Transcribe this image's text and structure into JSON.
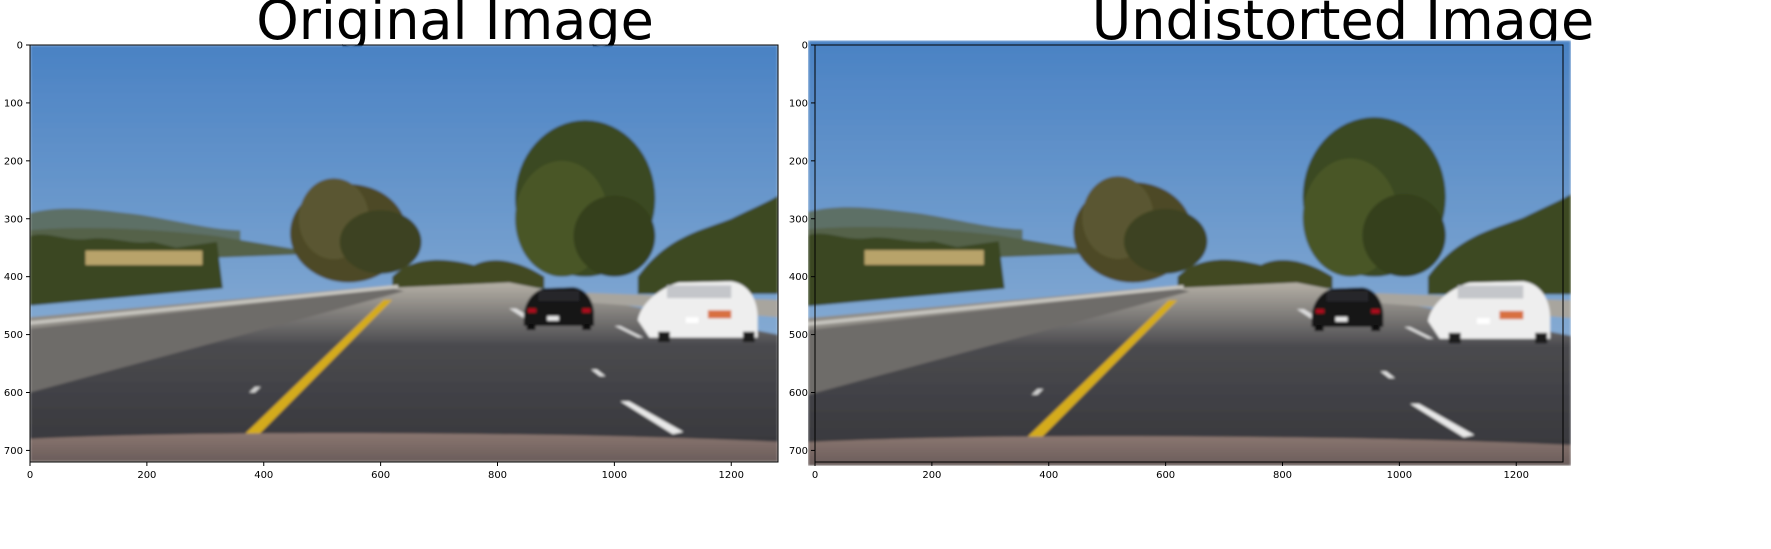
{
  "panels": [
    {
      "title": "Original Image",
      "x_ticks": [
        "0",
        "200",
        "400",
        "600",
        "800",
        "1000",
        "1200"
      ],
      "y_ticks": [
        "0",
        "100",
        "200",
        "300",
        "400",
        "500",
        "600",
        "700"
      ]
    },
    {
      "title": "Undistorted Image",
      "x_ticks": [
        "0",
        "200",
        "400",
        "600",
        "800",
        "1000",
        "1200"
      ],
      "y_ticks": [
        "0",
        "100",
        "200",
        "300",
        "400",
        "500",
        "600",
        "700"
      ]
    }
  ],
  "image": {
    "width": 1280,
    "height": 720,
    "x_tick_values": [
      0,
      200,
      400,
      600,
      800,
      1000,
      1200
    ],
    "y_tick_values": [
      0,
      100,
      200,
      300,
      400,
      500,
      600,
      700
    ],
    "description_icons": [
      "sky",
      "hills",
      "trees",
      "road",
      "yellow-lane-line",
      "white-lane-line",
      "black-car",
      "white-car",
      "guardrail",
      "car-hood"
    ],
    "colors": {
      "sky_top": "#4f86c6",
      "sky_bottom": "#8fb2d6",
      "hills": "#5a6b5a",
      "trees": "#3d4a22",
      "road": "#3f3f44",
      "yellow_line": "#d9b020",
      "white_line": "#e8e8e8",
      "hood": "#7a6a66",
      "guardrail": "#9b9b96"
    }
  }
}
